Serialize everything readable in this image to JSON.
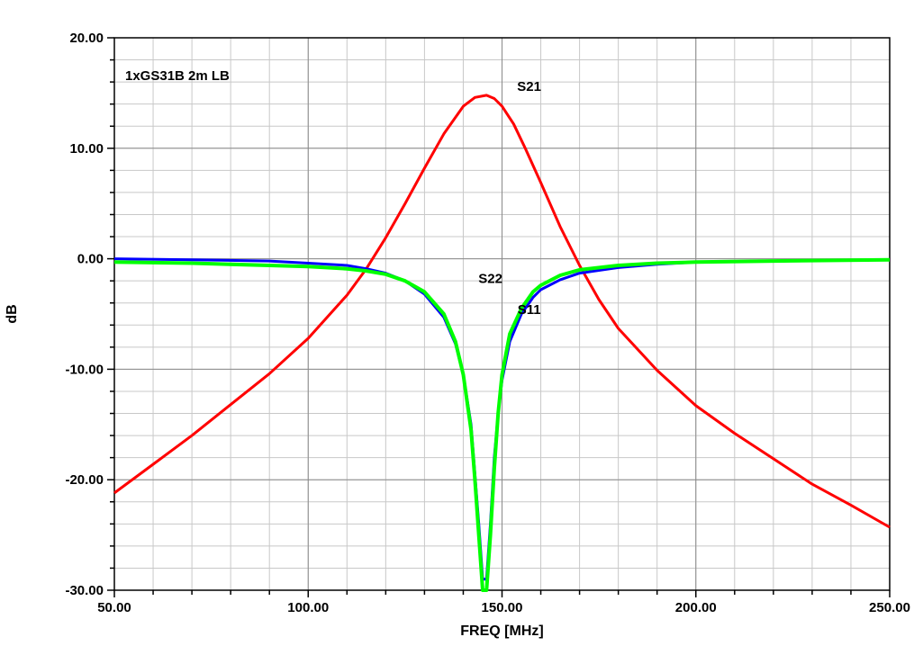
{
  "chart_data": {
    "type": "line",
    "title": "",
    "xlabel": "FREQ [MHz]",
    "ylabel": "dB",
    "xlim": [
      50,
      250
    ],
    "ylim": [
      -30,
      20
    ],
    "x_ticks": [
      50,
      100,
      150,
      200,
      250
    ],
    "x_tick_labels": [
      "50.00",
      "100.00",
      "150.00",
      "200.00",
      "250.00"
    ],
    "y_ticks": [
      -30,
      -20,
      -10,
      0,
      10,
      20
    ],
    "y_tick_labels": [
      "-30.00",
      "-20.00",
      "-10.00",
      "0.00",
      "10.00",
      "20.00"
    ],
    "x_minor_step": 10,
    "y_minor_step": 2,
    "grid": true,
    "annotation": "1xGS31B 2m LB",
    "series": [
      {
        "name": "S21",
        "color": "#ff0000",
        "x": [
          50,
          60,
          70,
          80,
          90,
          100,
          110,
          115,
          120,
          125,
          130,
          135,
          140,
          143,
          146,
          148,
          150,
          153,
          156,
          160,
          165,
          170,
          175,
          180,
          190,
          200,
          210,
          220,
          230,
          240,
          250
        ],
        "y": [
          -21.2,
          -18.6,
          -16.0,
          -13.2,
          -10.4,
          -7.2,
          -3.3,
          -0.9,
          1.9,
          5.0,
          8.2,
          11.3,
          13.8,
          14.6,
          14.8,
          14.5,
          13.8,
          12.2,
          10.0,
          6.9,
          2.9,
          -0.6,
          -3.7,
          -6.3,
          -10.1,
          -13.3,
          -15.8,
          -18.1,
          -20.4,
          -22.3,
          -24.3
        ]
      },
      {
        "name": "S11",
        "color": "#0000ff",
        "x": [
          50,
          70,
          90,
          100,
          110,
          115,
          120,
          125,
          130,
          135,
          138,
          140,
          142,
          143,
          144,
          145,
          146,
          147,
          148,
          149,
          150,
          152,
          155,
          158,
          160,
          165,
          170,
          180,
          190,
          200,
          220,
          250
        ],
        "y": [
          0.0,
          -0.1,
          -0.2,
          -0.4,
          -0.6,
          -0.9,
          -1.3,
          -2.0,
          -3.2,
          -5.3,
          -7.7,
          -10.5,
          -15.0,
          -19.5,
          -24.0,
          -29.0,
          -29.0,
          -24.0,
          -18.0,
          -14.0,
          -11.0,
          -7.5,
          -5.0,
          -3.5,
          -2.8,
          -1.9,
          -1.3,
          -0.8,
          -0.5,
          -0.3,
          -0.2,
          -0.1
        ]
      },
      {
        "name": "S22",
        "color": "#00ff00",
        "x": [
          50,
          70,
          90,
          100,
          110,
          115,
          120,
          125,
          130,
          135,
          138,
          140,
          142,
          143,
          144,
          145,
          146,
          147,
          148,
          149,
          150,
          152,
          155,
          158,
          160,
          165,
          170,
          180,
          190,
          200,
          220,
          250
        ],
        "y": [
          -0.3,
          -0.4,
          -0.6,
          -0.7,
          -0.9,
          -1.1,
          -1.4,
          -2.0,
          -3.0,
          -5.0,
          -7.5,
          -10.5,
          -15.5,
          -20.0,
          -25.0,
          -30.0,
          -30.0,
          -25.0,
          -19.0,
          -14.0,
          -10.5,
          -6.8,
          -4.5,
          -3.0,
          -2.4,
          -1.5,
          -1.0,
          -0.6,
          -0.4,
          -0.3,
          -0.2,
          -0.1
        ]
      }
    ],
    "series_labels": [
      {
        "text": "S21",
        "x": 157,
        "y": 15.2
      },
      {
        "text": "S22",
        "x": 147,
        "y": -2.2
      },
      {
        "text": "S11",
        "x": 157,
        "y": -5.0
      }
    ]
  }
}
